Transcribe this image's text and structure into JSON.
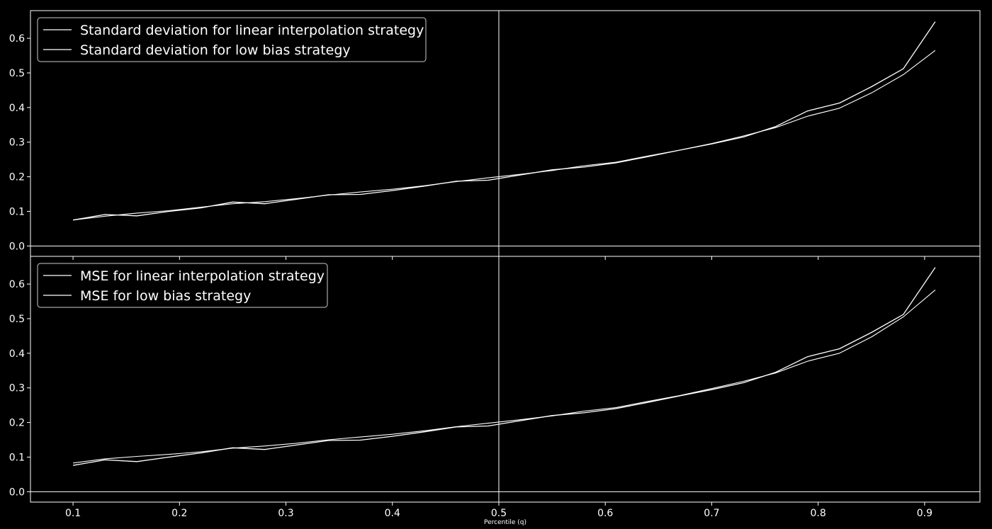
{
  "figure": {
    "xlabel": "Percentile (q)",
    "background": "#000000",
    "foreground": "#ffffff"
  },
  "chart_data": [
    {
      "type": "line",
      "title": "",
      "xlabel": "",
      "ylabel": "",
      "xlim": [
        0.06,
        0.952
      ],
      "ylim": [
        -0.03,
        0.68
      ],
      "xticks": [
        0.1,
        0.2,
        0.3,
        0.4,
        0.5,
        0.6,
        0.7,
        0.8,
        0.9
      ],
      "xtick_labels": [
        "0.1",
        "0.2",
        "0.3",
        "0.4",
        "0.5",
        "0.6",
        "0.7",
        "0.8",
        "0.9"
      ],
      "yticks": [
        0.0,
        0.1,
        0.2,
        0.3,
        0.4,
        0.5,
        0.6
      ],
      "ytick_labels": [
        "0.0",
        "0.1",
        "0.2",
        "0.3",
        "0.4",
        "0.5",
        "0.6"
      ],
      "hlines": [
        0.0
      ],
      "vlines": [
        0.5
      ],
      "legend_position": "top-left",
      "grid": false,
      "x": [
        0.1,
        0.13,
        0.16,
        0.19,
        0.22,
        0.25,
        0.28,
        0.31,
        0.34,
        0.37,
        0.4,
        0.43,
        0.46,
        0.49,
        0.52,
        0.55,
        0.58,
        0.61,
        0.64,
        0.67,
        0.7,
        0.73,
        0.76,
        0.79,
        0.82,
        0.85,
        0.88,
        0.91
      ],
      "series": [
        {
          "name": "Standard deviation for linear interpolation strategy",
          "color": "#ffffff",
          "values": [
            0.075,
            0.091,
            0.087,
            0.1,
            0.11,
            0.127,
            0.122,
            0.135,
            0.148,
            0.149,
            0.16,
            0.173,
            0.187,
            0.19,
            0.205,
            0.22,
            0.228,
            0.24,
            0.258,
            0.277,
            0.295,
            0.315,
            0.345,
            0.39,
            0.413,
            0.46,
            0.512,
            0.648
          ]
        },
        {
          "name": "Standard deviation for low bias strategy",
          "color": "#ffffff",
          "values": [
            0.075,
            0.086,
            0.095,
            0.102,
            0.112,
            0.122,
            0.128,
            0.137,
            0.147,
            0.156,
            0.164,
            0.174,
            0.186,
            0.197,
            0.207,
            0.218,
            0.232,
            0.242,
            0.26,
            0.277,
            0.296,
            0.318,
            0.342,
            0.375,
            0.398,
            0.442,
            0.495,
            0.565
          ]
        }
      ]
    },
    {
      "type": "line",
      "title": "",
      "xlabel": "",
      "ylabel": "",
      "xlim": [
        0.06,
        0.952
      ],
      "ylim": [
        -0.03,
        0.68
      ],
      "xticks": [
        0.1,
        0.2,
        0.3,
        0.4,
        0.5,
        0.6,
        0.7,
        0.8,
        0.9
      ],
      "xtick_labels": [
        "0.1",
        "0.2",
        "0.3",
        "0.4",
        "0.5",
        "0.6",
        "0.7",
        "0.8",
        "0.9"
      ],
      "yticks": [
        0.0,
        0.1,
        0.2,
        0.3,
        0.4,
        0.5,
        0.6
      ],
      "ytick_labels": [
        "0.0",
        "0.1",
        "0.2",
        "0.3",
        "0.4",
        "0.5",
        "0.6"
      ],
      "hlines": [
        0.0
      ],
      "vlines": [
        0.5
      ],
      "legend_position": "top-left",
      "grid": false,
      "x": [
        0.1,
        0.13,
        0.16,
        0.19,
        0.22,
        0.25,
        0.28,
        0.31,
        0.34,
        0.37,
        0.4,
        0.43,
        0.46,
        0.49,
        0.52,
        0.55,
        0.58,
        0.61,
        0.64,
        0.67,
        0.7,
        0.73,
        0.76,
        0.79,
        0.82,
        0.85,
        0.88,
        0.91
      ],
      "series": [
        {
          "name": "MSE for linear interpolation strategy",
          "color": "#ffffff",
          "values": [
            0.076,
            0.092,
            0.087,
            0.1,
            0.112,
            0.127,
            0.122,
            0.135,
            0.148,
            0.149,
            0.16,
            0.173,
            0.187,
            0.19,
            0.205,
            0.22,
            0.228,
            0.24,
            0.258,
            0.277,
            0.295,
            0.315,
            0.345,
            0.39,
            0.413,
            0.46,
            0.512,
            0.648
          ]
        },
        {
          "name": "MSE for low bias strategy",
          "color": "#ffffff",
          "values": [
            0.083,
            0.095,
            0.102,
            0.108,
            0.115,
            0.126,
            0.132,
            0.14,
            0.15,
            0.158,
            0.166,
            0.176,
            0.188,
            0.198,
            0.208,
            0.219,
            0.233,
            0.243,
            0.261,
            0.278,
            0.298,
            0.319,
            0.343,
            0.377,
            0.4,
            0.447,
            0.505,
            0.583
          ]
        }
      ]
    }
  ]
}
